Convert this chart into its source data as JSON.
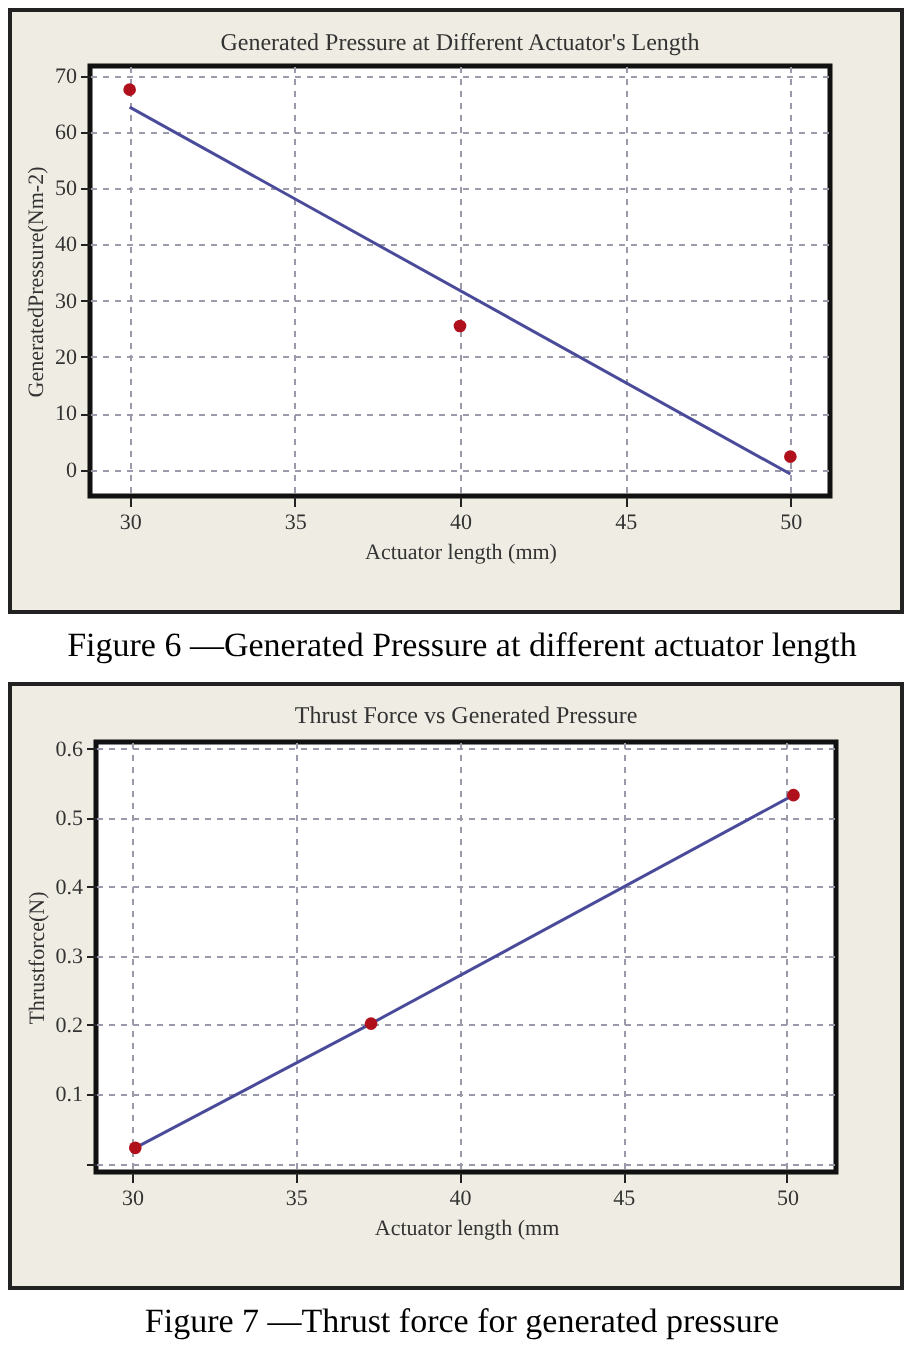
{
  "chart_data": [
    {
      "type": "scatter",
      "title": "Generated Pressure at Different Actuator's Length",
      "xlabel": "Actuator length (mm)",
      "ylabel": "GeneratedPressure(Nm-2)",
      "xlim": [
        28.8,
        51.2
      ],
      "ylim": [
        -4.7,
        71.7
      ],
      "xticks": [
        30,
        35,
        40,
        45,
        50
      ],
      "yticks": [
        0,
        10,
        20,
        30,
        40,
        50,
        60,
        70
      ],
      "grid": true,
      "annotations": [
        "Figure 6 —Generated Pressure at different actuator length"
      ],
      "series": [
        {
          "type": "scatter",
          "color": "#b0101c",
          "marker": "circle",
          "x": [
            30,
            40,
            50
          ],
          "values": [
            67.5,
            25.5,
            2.3
          ]
        },
        {
          "type": "line",
          "color": "#4a4a9a",
          "x": [
            30,
            50
          ],
          "values": [
            64.4,
            -0.8
          ]
        }
      ]
    },
    {
      "type": "scatter",
      "title": "Thrust Force vs Generated Pressure",
      "xlabel": "Actuator length (mm",
      "ylabel": "Thrustforce(N)",
      "xlim": [
        28.9,
        51.5
      ],
      "ylim": [
        -0.013,
        0.61
      ],
      "xticks": [
        30,
        35,
        40,
        45,
        50
      ],
      "yticks": [
        {
          "value": 0,
          "label": null
        },
        0.1,
        0.2,
        0.3,
        0.4,
        0.5,
        0.6
      ],
      "grid": true,
      "annotations": [
        "Figure 7 —Thrust force for generated pressure"
      ],
      "series": [
        {
          "type": "scatter",
          "color": "#b0101c",
          "marker": "circle",
          "x": [
            30.1,
            37.3,
            50.2
          ],
          "values": [
            0.022,
            0.202,
            0.533
          ]
        },
        {
          "type": "line",
          "color": "#4a4a9a",
          "x": [
            30.1,
            37.3,
            50.2
          ],
          "values": [
            0.022,
            0.202,
            0.533
          ]
        }
      ]
    }
  ]
}
